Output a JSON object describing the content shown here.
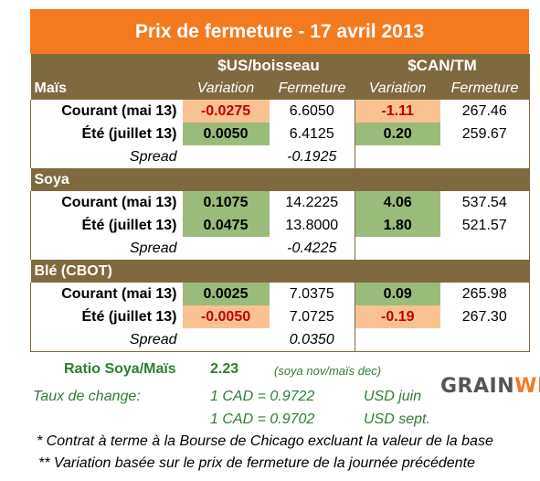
{
  "title": "Prix de fermeture - 17 avril 2013",
  "header": {
    "unit_us": "$US/boisseau",
    "unit_can": "$CAN/TM",
    "variation": "Variation",
    "fermeture": "Fermeture"
  },
  "sections": {
    "mais": {
      "name": "Maïs",
      "courant": {
        "label": "Courant (mai 13)",
        "us_var": "-0.0275",
        "us_close": "6.6050",
        "can_var": "-1.11",
        "can_close": "267.46"
      },
      "ete": {
        "label": "Été (juillet 13)",
        "us_var": "0.0050",
        "us_close": "6.4125",
        "can_var": "0.20",
        "can_close": "259.67"
      },
      "spread": {
        "label": "Spread",
        "value": "-0.1925"
      }
    },
    "soya": {
      "name": "Soya",
      "courant": {
        "label": "Courant (mai 13)",
        "us_var": "0.1075",
        "us_close": "14.2225",
        "can_var": "4.06",
        "can_close": "537.54"
      },
      "ete": {
        "label": "Été (juillet 13)",
        "us_var": "0.0475",
        "us_close": "13.8000",
        "can_var": "1.80",
        "can_close": "521.57"
      },
      "spread": {
        "label": "Spread",
        "value": "-0.4225"
      }
    },
    "ble": {
      "name": "Blé (CBOT)",
      "courant": {
        "label": "Courant (mai 13)",
        "us_var": "0.0025",
        "us_close": "7.0375",
        "can_var": "0.09",
        "can_close": "265.98"
      },
      "ete": {
        "label": "Été (juillet 13)",
        "us_var": "-0.0050",
        "us_close": "7.0725",
        "can_var": "-0.19",
        "can_close": "267.30"
      },
      "spread": {
        "label": "Spread",
        "value": "0.0350"
      }
    }
  },
  "ratio": {
    "label": "Ratio Soya/Maïs",
    "value": "2.23",
    "note": "(soya nov/maïs dec)"
  },
  "exchange": {
    "label": "Taux de change:",
    "rate1": "1 CAD =  0.9722",
    "unit1": "USD juin",
    "rate2": "1 CAD =  0.9702",
    "unit2": "USD sept."
  },
  "logo": {
    "part1": "GRAIN",
    "part2": "WIZ"
  },
  "notes": {
    "note1": "* Contrat à terme à la Bourse de Chicago excluant la valeur de la base",
    "note2": "** Variation basée sur le prix de fermeture de la journée précédente"
  },
  "colors": {
    "title_bg": "#f47a20",
    "header_bg": "#7f6a3f",
    "positive_bg": "#9bbb7a",
    "negative_bg": "#f9c292",
    "negative_text": "#c00000",
    "accent_green": "#2e7d32"
  }
}
